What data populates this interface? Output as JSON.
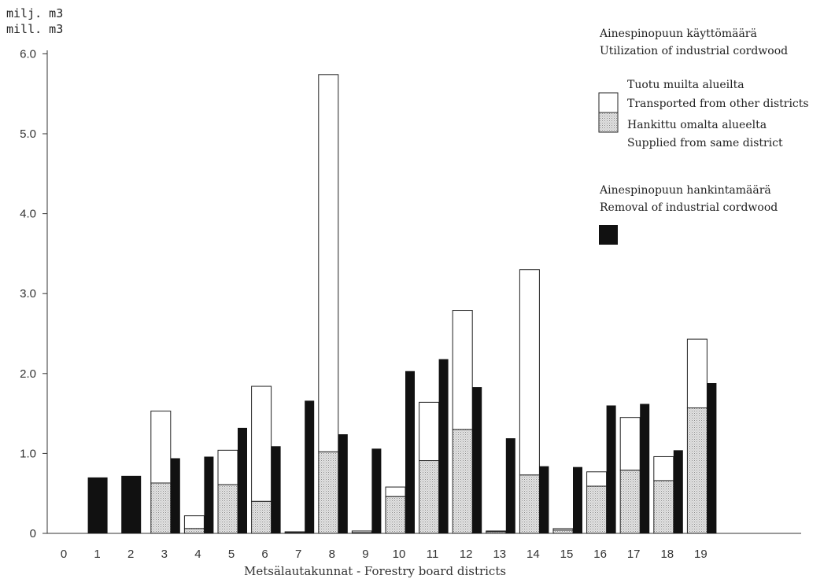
{
  "chart_data": {
    "type": "bar",
    "unit_label_1": "milj. m3",
    "unit_label_2": "mill. m3",
    "xlabel": "Metsälautakunnat - Forestry board districts",
    "ylim": [
      0,
      6.0
    ],
    "yticks": [
      "0",
      "1.0",
      "2.0",
      "3.0",
      "4.0",
      "5.0",
      "6.0"
    ],
    "categories": [
      "0",
      "1",
      "2",
      "3",
      "4",
      "5",
      "6",
      "7",
      "8",
      "9",
      "10",
      "11",
      "12",
      "13",
      "14",
      "15",
      "16",
      "17",
      "18",
      "19"
    ],
    "utilization": {
      "same_district": [
        0,
        0,
        0,
        0.63,
        0.06,
        0.61,
        0.4,
        0.01,
        1.02,
        0.01,
        0.46,
        0.91,
        1.3,
        0.02,
        0.73,
        0.04,
        0.59,
        0.79,
        0.66,
        1.57
      ],
      "total": [
        0,
        0,
        0,
        1.53,
        0.22,
        1.04,
        1.84,
        0.02,
        5.74,
        0.03,
        0.58,
        1.64,
        2.79,
        0.03,
        3.3,
        0.06,
        0.77,
        1.45,
        0.96,
        2.43
      ]
    },
    "removal": [
      0,
      0.7,
      0.72,
      0.94,
      0.96,
      1.32,
      1.09,
      1.66,
      1.24,
      1.06,
      2.03,
      2.18,
      1.83,
      1.19,
      0.84,
      0.83,
      1.6,
      1.62,
      1.04,
      1.88
    ],
    "legend": {
      "utilization_title_fi": "Ainespinopuun käyttömäärä",
      "utilization_title_en": "Utilization of industrial cordwood",
      "transported_fi": "Tuotu muilta alueilta",
      "transported_en": "Transported from other districts",
      "supplied_fi": "Hankittu omalta alueelta",
      "supplied_en": "Supplied from same district",
      "removal_title_fi": "Ainespinopuun hankintamäärä",
      "removal_title_en": "Removal of industrial cordwood"
    },
    "colors": {
      "removal": "#111111",
      "transported": "#ffffff",
      "supplied": "#d9d9d9",
      "outline": "#222222"
    }
  }
}
